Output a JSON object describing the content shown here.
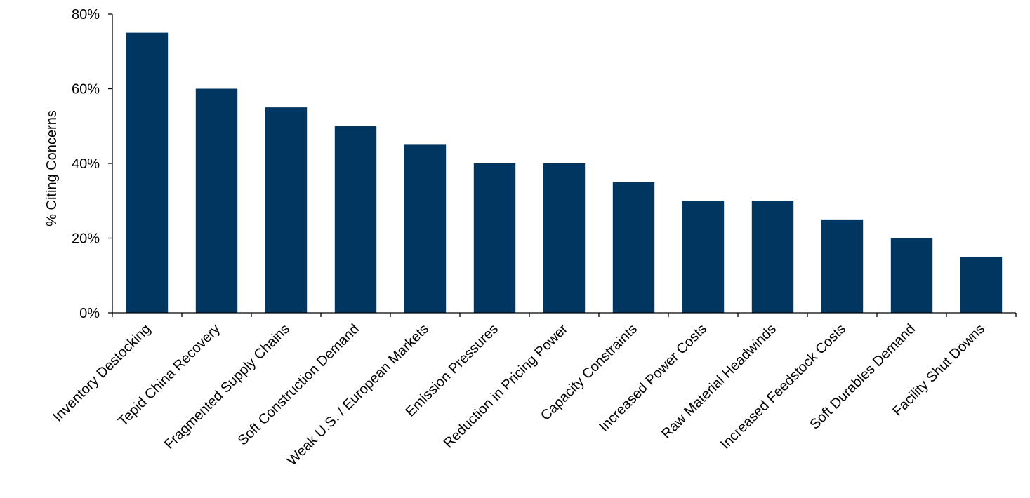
{
  "chart_data": {
    "type": "bar",
    "title": "",
    "xlabel": "",
    "ylabel": "% Citing Concerns",
    "ylim": [
      0,
      80
    ],
    "yticks": [
      0,
      20,
      40,
      60,
      80
    ],
    "ytick_labels": [
      "0%",
      "20%",
      "40%",
      "60%",
      "80%"
    ],
    "grid": false,
    "legend": "none",
    "bar_color": "#003660",
    "categories": [
      "Inventory Destocking",
      "Tepid China Recovery",
      "Fragmented Supply Chains",
      "Soft Construction Demand",
      "Weak U.S. / European Markets",
      "Emission Pressures",
      "Reduction in Pricing Power",
      "Capacity Constraints",
      "Increased Power Costs",
      "Raw Material Headwinds",
      "Increased Feedstock Costs",
      "Soft Durables Demand",
      "Facility Shut Downs"
    ],
    "values": [
      75,
      60,
      55,
      50,
      45,
      40,
      40,
      35,
      30,
      30,
      25,
      20,
      15
    ]
  }
}
